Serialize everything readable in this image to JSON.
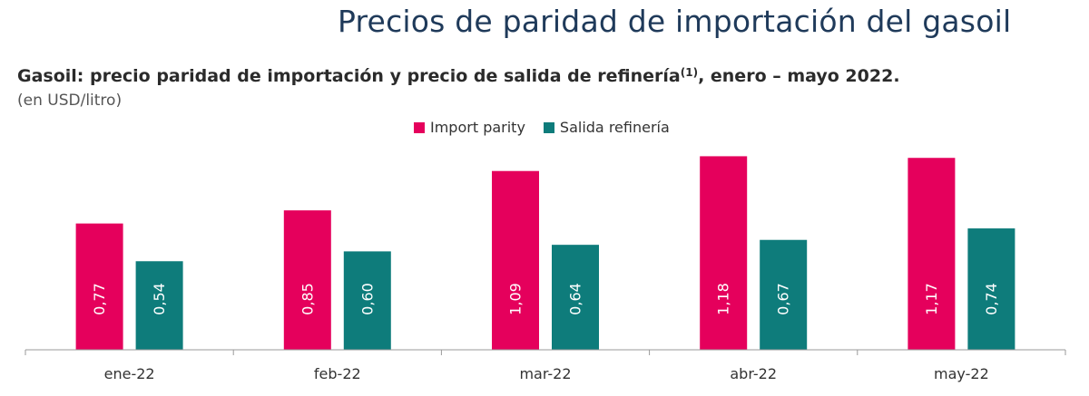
{
  "page": {
    "title": "Precios de paridad de importación del gasoil"
  },
  "chart_header": {
    "title_main": "Gasoil: precio paridad de importación y precio de salida de refinería",
    "title_note": "(1)",
    "title_tail": ", enero – mayo 2022.",
    "subtitle": "(en USD/litro)"
  },
  "legend": {
    "items": [
      {
        "label": "Import parity",
        "color": "#e5005c"
      },
      {
        "label": "Salida refinería",
        "color": "#0e7c7b"
      }
    ]
  },
  "chart_data": {
    "type": "bar",
    "categories": [
      "ene-22",
      "feb-22",
      "mar-22",
      "abr-22",
      "may-22"
    ],
    "series": [
      {
        "name": "Import parity",
        "color": "#e5005c",
        "values": [
          0.77,
          0.85,
          1.09,
          1.18,
          1.17
        ],
        "labels": [
          "0,77",
          "0,85",
          "1,09",
          "1,18",
          "1,17"
        ]
      },
      {
        "name": "Salida refinería",
        "color": "#0e7c7b",
        "values": [
          0.54,
          0.6,
          0.64,
          0.67,
          0.74
        ],
        "labels": [
          "0,54",
          "0,60",
          "0,64",
          "0,67",
          "0,74"
        ]
      }
    ],
    "ylim": [
      0,
      1.2
    ],
    "grid": false,
    "legend_position": "top-center",
    "data_labels": "inside-rotated"
  }
}
